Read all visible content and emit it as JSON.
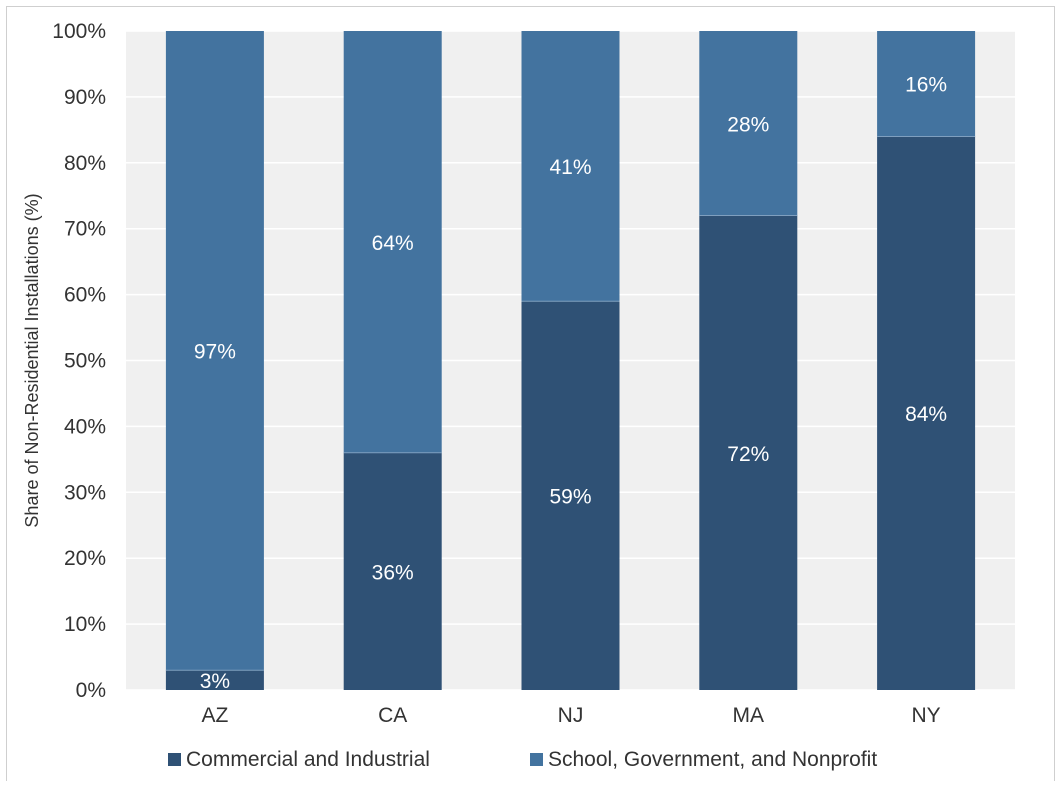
{
  "chart_data": {
    "type": "bar",
    "stacked": true,
    "categories": [
      "AZ",
      "CA",
      "NJ",
      "MA",
      "NY"
    ],
    "series": [
      {
        "name": "Commercial and Industrial",
        "values": [
          3,
          36,
          59,
          72,
          84
        ],
        "labels": [
          "3%",
          "36%",
          "59%",
          "72%",
          "84%"
        ],
        "color": "#2f5175"
      },
      {
        "name": "School, Government, and Nonprofit",
        "values": [
          97,
          64,
          41,
          28,
          16
        ],
        "labels": [
          "97%",
          "64%",
          "41%",
          "28%",
          "16%"
        ],
        "color": "#43739f"
      }
    ],
    "ylabel": "Share of Non-Residential Installations (%)",
    "xlabel": "",
    "ylim": [
      0,
      100
    ],
    "yticks": [
      0,
      10,
      20,
      30,
      40,
      50,
      60,
      70,
      80,
      90,
      100
    ],
    "ytick_labels": [
      "0%",
      "10%",
      "20%",
      "30%",
      "40%",
      "50%",
      "60%",
      "70%",
      "80%",
      "90%",
      "100%"
    ],
    "grid": true,
    "plot_background": "#f0f0f0",
    "grid_color": "#ffffff",
    "legend_position": "bottom"
  }
}
